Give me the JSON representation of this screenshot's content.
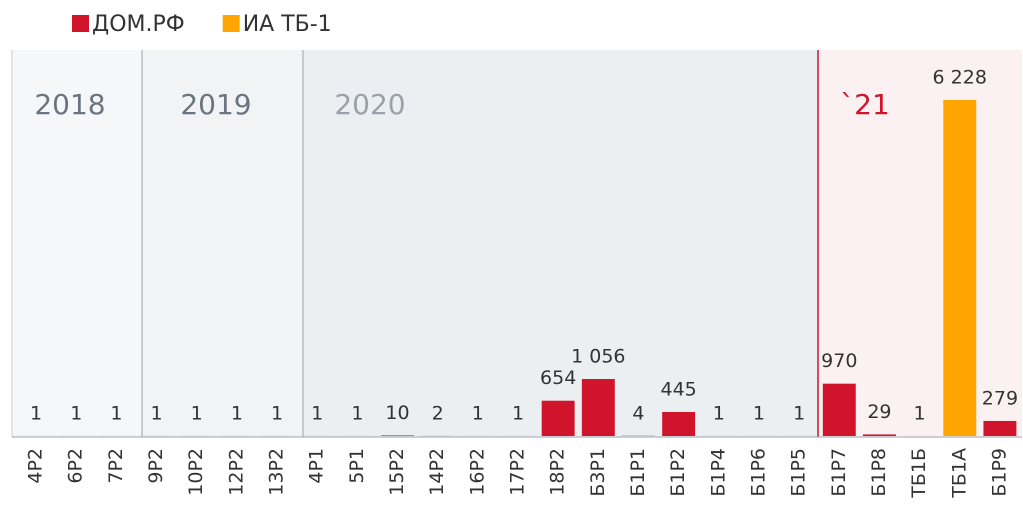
{
  "chart_data": {
    "type": "bar",
    "categories": [
      "4Р2",
      "6Р2",
      "7Р2",
      "9Р2",
      "10Р2",
      "12Р2",
      "13Р2",
      "4Р1",
      "5Р1",
      "15Р2",
      "14Р2",
      "16Р2",
      "17Р2",
      "18Р2",
      "Б3Р1",
      "Б1Р1",
      "Б1Р2",
      "Б1Р4",
      "Б1Р6",
      "Б1Р5",
      "Б1Р7",
      "Б1Р8",
      "ТБ1Б",
      "ТБ1А",
      "Б1Р9"
    ],
    "series": [
      {
        "name": "ДОМ.РФ",
        "color": "#d0142c",
        "values": [
          1,
          1,
          1,
          1,
          1,
          1,
          1,
          1,
          1,
          10,
          2,
          1,
          1,
          654,
          1056,
          4,
          445,
          1,
          1,
          1,
          970,
          29,
          null,
          null,
          279
        ],
        "value_labels": [
          "1",
          "1",
          "1",
          "1",
          "1",
          "1",
          "1",
          "1",
          "1",
          "10",
          "2",
          "1",
          "1",
          "654",
          "1 056",
          "4",
          "445",
          "1",
          "1",
          "1",
          "970",
          "29",
          null,
          null,
          "279"
        ]
      },
      {
        "name": "ИА ТБ-1",
        "color": "#ffa500",
        "values": [
          null,
          null,
          null,
          null,
          null,
          null,
          null,
          null,
          null,
          null,
          null,
          null,
          null,
          null,
          null,
          null,
          null,
          null,
          null,
          null,
          null,
          null,
          1,
          6228,
          null
        ],
        "value_labels": [
          null,
          null,
          null,
          null,
          null,
          null,
          null,
          null,
          null,
          null,
          null,
          null,
          null,
          null,
          null,
          null,
          null,
          null,
          null,
          null,
          null,
          null,
          "1",
          "6 228",
          null
        ]
      }
    ],
    "periods": [
      "2018",
      "2019",
      "2020",
      "`21"
    ],
    "ylim": [
      0,
      6500
    ]
  }
}
